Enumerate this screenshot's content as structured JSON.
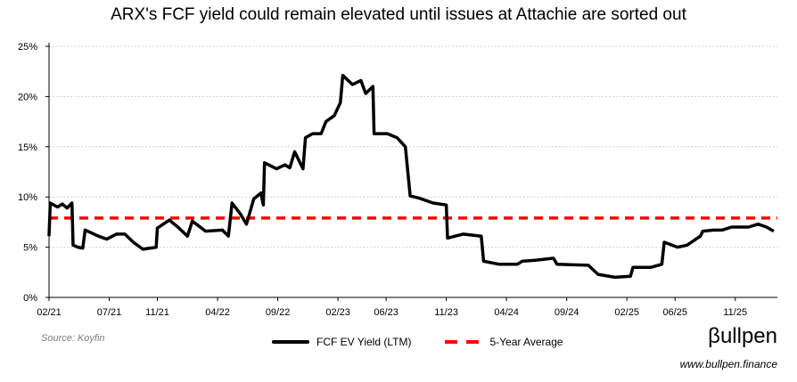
{
  "chart_data": {
    "type": "line",
    "title": "ARX's FCF yield could remain elevated until issues at Attachie are sorted out",
    "x_unit": "months since 02/21",
    "x_tick_labels": [
      "02/21",
      "07/21",
      "11/21",
      "04/22",
      "09/22",
      "02/23",
      "06/23",
      "11/23",
      "04/24",
      "09/24",
      "02/25",
      "06/25",
      "11/25"
    ],
    "x_tick_months": [
      0,
      5,
      9,
      14,
      19,
      24,
      28,
      33,
      38,
      43,
      48,
      52,
      57
    ],
    "xlim": [
      0,
      60.5
    ],
    "ylim": [
      0,
      25
    ],
    "y_tick_labels": [
      "0%",
      "5%",
      "10%",
      "15%",
      "20%",
      "25%"
    ],
    "y_ticks": [
      0,
      5,
      10,
      15,
      20,
      25
    ],
    "grid": true,
    "legend_placement": "bottom",
    "series": [
      {
        "name": "FCF EV Yield (LTM)",
        "color": "#000000",
        "points": [
          [
            0,
            6.1
          ],
          [
            0.1,
            9.4
          ],
          [
            0.7,
            9.0
          ],
          [
            1.1,
            9.3
          ],
          [
            1.5,
            8.9
          ],
          [
            1.9,
            9.4
          ],
          [
            2.0,
            5.2
          ],
          [
            2.4,
            5.0
          ],
          [
            2.8,
            4.9
          ],
          [
            3.0,
            6.7
          ],
          [
            4.1,
            6.1
          ],
          [
            4.8,
            5.8
          ],
          [
            5.6,
            6.3
          ],
          [
            6.3,
            6.3
          ],
          [
            7.0,
            5.5
          ],
          [
            7.8,
            4.8
          ],
          [
            8.9,
            5.0
          ],
          [
            9.0,
            6.9
          ],
          [
            10.0,
            7.7
          ],
          [
            10.7,
            7.0
          ],
          [
            11.5,
            6.1
          ],
          [
            11.9,
            7.6
          ],
          [
            13.0,
            6.6
          ],
          [
            14.4,
            6.7
          ],
          [
            14.9,
            6.1
          ],
          [
            15.2,
            9.4
          ],
          [
            15.9,
            8.3
          ],
          [
            16.4,
            7.3
          ],
          [
            17.0,
            9.8
          ],
          [
            17.6,
            10.4
          ],
          [
            17.8,
            9.2
          ],
          [
            17.9,
            13.4
          ],
          [
            18.9,
            12.8
          ],
          [
            19.6,
            13.2
          ],
          [
            20.0,
            12.9
          ],
          [
            20.4,
            14.5
          ],
          [
            21.1,
            12.8
          ],
          [
            21.3,
            15.9
          ],
          [
            21.9,
            16.3
          ],
          [
            22.6,
            16.3
          ],
          [
            23.0,
            17.5
          ],
          [
            23.7,
            18.1
          ],
          [
            24.2,
            19.4
          ],
          [
            24.4,
            22.1
          ],
          [
            25.2,
            21.2
          ],
          [
            25.9,
            21.6
          ],
          [
            26.3,
            20.3
          ],
          [
            26.9,
            21.0
          ],
          [
            27.0,
            16.3
          ],
          [
            28.1,
            16.3
          ],
          [
            28.9,
            15.9
          ],
          [
            29.6,
            15.0
          ],
          [
            30.0,
            10.1
          ],
          [
            30.7,
            9.9
          ],
          [
            31.9,
            9.4
          ],
          [
            33.0,
            9.2
          ],
          [
            33.1,
            5.9
          ],
          [
            34.4,
            6.3
          ],
          [
            35.9,
            6.1
          ],
          [
            36.1,
            3.6
          ],
          [
            37.4,
            3.3
          ],
          [
            38.9,
            3.3
          ],
          [
            39.3,
            3.6
          ],
          [
            40.4,
            3.7
          ],
          [
            41.9,
            3.9
          ],
          [
            42.2,
            3.3
          ],
          [
            44.8,
            3.2
          ],
          [
            45.6,
            2.3
          ],
          [
            47.0,
            2.0
          ],
          [
            48.3,
            2.1
          ],
          [
            48.5,
            3.0
          ],
          [
            50.0,
            3.0
          ],
          [
            50.9,
            3.3
          ],
          [
            51.1,
            5.5
          ],
          [
            52.2,
            5.0
          ],
          [
            53.0,
            5.2
          ],
          [
            54.1,
            6.1
          ],
          [
            54.3,
            6.6
          ],
          [
            55.2,
            6.7
          ],
          [
            55.9,
            6.7
          ],
          [
            56.7,
            7.0
          ],
          [
            58.1,
            7.0
          ],
          [
            58.9,
            7.3
          ],
          [
            59.6,
            7.0
          ],
          [
            60.2,
            6.6
          ]
        ]
      },
      {
        "name": "5-Year Average",
        "color": "#ff0000",
        "value": 7.9
      }
    ],
    "source": "Source: Koyfin"
  },
  "branding": {
    "logo": "βullpen",
    "url": "www.bullpen.finance"
  }
}
